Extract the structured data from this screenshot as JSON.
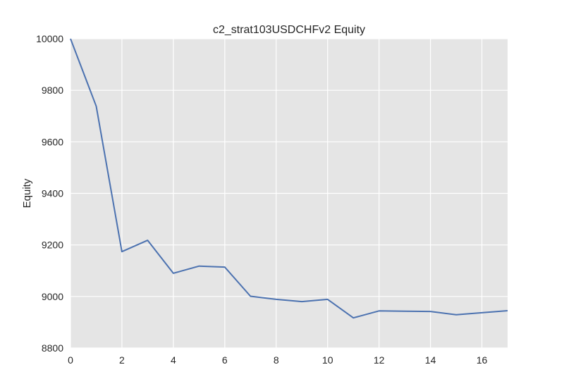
{
  "chart_data": {
    "type": "line",
    "title": "c2_strat103USDCHFv2 Equity",
    "xlabel": "",
    "ylabel": "Equity",
    "xlim": [
      0,
      17
    ],
    "ylim": [
      8800,
      10000
    ],
    "xticks": [
      0,
      2,
      4,
      6,
      8,
      10,
      12,
      14,
      16
    ],
    "yticks": [
      8800,
      9000,
      9200,
      9400,
      9600,
      9800,
      10000
    ],
    "grid": true,
    "background": "#e5e5e5",
    "grid_color": "#ffffff",
    "line_color": "#4c72b0",
    "series": [
      {
        "x": [
          0,
          1,
          2,
          3,
          4,
          5,
          6,
          7,
          8,
          9,
          10,
          11,
          12,
          13,
          14,
          15,
          16,
          17
        ],
        "values": [
          10000,
          9738,
          9174,
          9218,
          9090,
          9118,
          9114,
          9001,
          8989,
          8980,
          8989,
          8917,
          8944,
          8943,
          8942,
          8929,
          8937,
          8945
        ]
      }
    ]
  }
}
